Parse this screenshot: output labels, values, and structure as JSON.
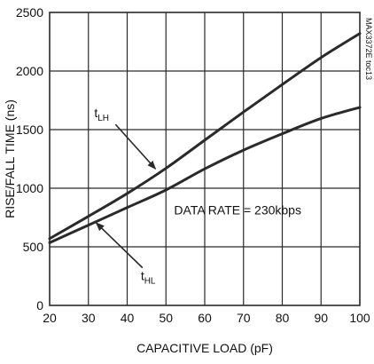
{
  "chart_data": {
    "type": "line",
    "xlabel": "CAPACITIVE LOAD (pF)",
    "ylabel": "RISE/FALL TIME (ns)",
    "xlim": [
      20,
      100
    ],
    "ylim": [
      0,
      2500
    ],
    "x_ticks": [
      20,
      30,
      40,
      50,
      60,
      70,
      80,
      90,
      100
    ],
    "y_ticks": [
      0,
      500,
      1000,
      1500,
      2000,
      2500
    ],
    "grid": true,
    "series": [
      {
        "name": "tLH",
        "x": [
          20,
          30,
          40,
          50,
          60,
          70,
          80,
          90,
          100
        ],
        "y": [
          570,
          760,
          955,
          1170,
          1410,
          1650,
          1885,
          2115,
          2320
        ]
      },
      {
        "name": "tHL",
        "x": [
          20,
          30,
          40,
          50,
          60,
          70,
          80,
          90,
          100
        ],
        "y": [
          535,
          685,
          835,
          985,
          1165,
          1325,
          1465,
          1595,
          1690
        ]
      }
    ],
    "annotations": [
      {
        "id": "tlh",
        "main": "t",
        "sub": "LH",
        "x": 31.5,
        "y": 1605,
        "arrow_to": [
          47.3,
          1165
        ]
      },
      {
        "id": "thl",
        "main": "t",
        "sub": "HL",
        "x": 43.5,
        "y": 215,
        "arrow_to": [
          32.0,
          705
        ]
      },
      {
        "id": "rate",
        "text": "DATA RATE = 230kbps",
        "x": 68.5,
        "y": 775
      }
    ],
    "side_label": "MAX3372E toc13"
  },
  "colors": {
    "curve": "#2a2a2a",
    "grid": "#2a2a2a",
    "text": "#111111"
  }
}
